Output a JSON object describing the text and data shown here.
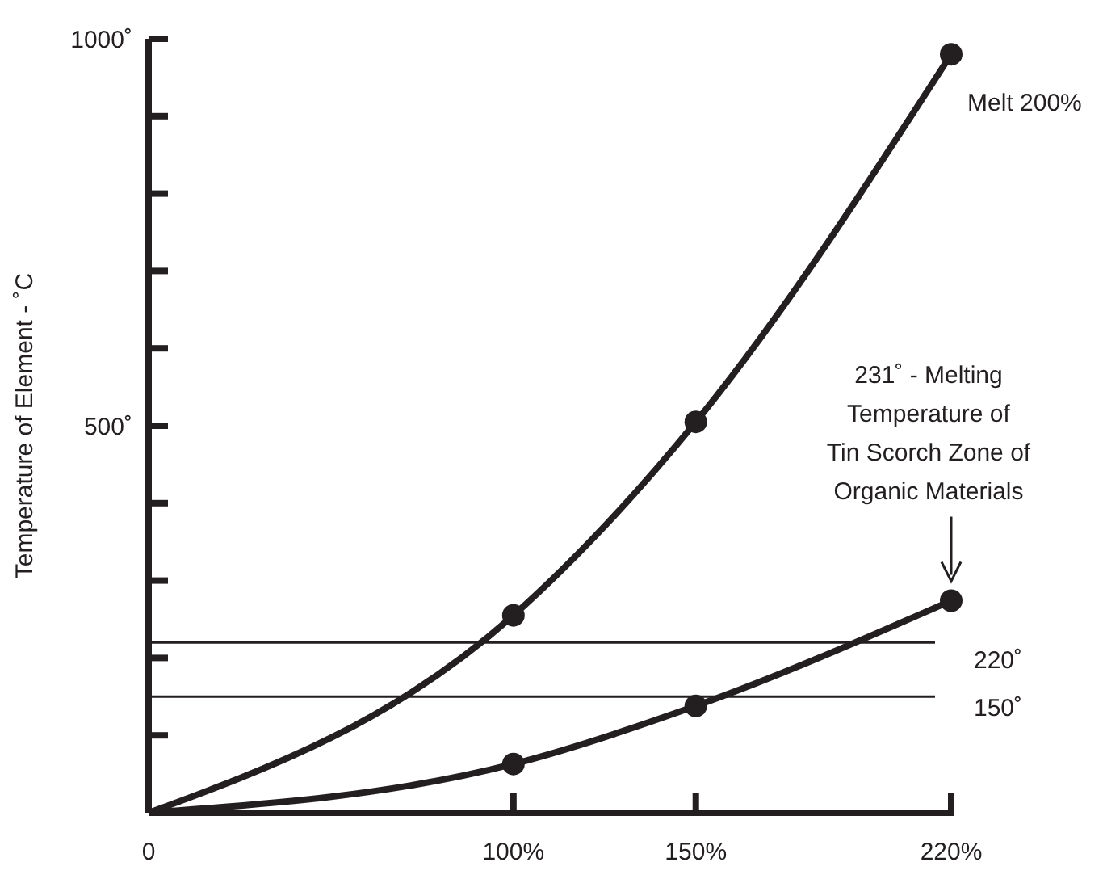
{
  "chart_data": {
    "type": "line",
    "ylabel": "Temperature of Element - ˚C",
    "x": [
      0,
      100,
      150,
      220
    ],
    "series": [
      {
        "name": "Melt 200%",
        "color": "#231f20",
        "values": [
          0,
          255,
          505,
          980
        ]
      },
      {
        "color": "#231f20",
        "values": [
          0,
          63,
          138,
          274
        ]
      }
    ],
    "xlim": [
      0,
      220
    ],
    "xticks": [
      {
        "value": 0,
        "label": "0"
      },
      {
        "value": 100,
        "label": "100%"
      },
      {
        "value": 150,
        "label": "150%"
      },
      {
        "value": 220,
        "label": "220%"
      }
    ],
    "ylim": [
      0,
      1000
    ],
    "yticks": [
      {
        "value": 100,
        "label": null
      },
      {
        "value": 200,
        "label": null
      },
      {
        "value": 300,
        "label": null
      },
      {
        "value": 400,
        "label": null
      },
      {
        "value": 500,
        "label": "500˚"
      },
      {
        "value": 600,
        "label": null
      },
      {
        "value": 700,
        "label": null
      },
      {
        "value": 800,
        "label": null
      },
      {
        "value": 900,
        "label": null
      },
      {
        "value": 1000,
        "label": "1000˚"
      }
    ],
    "ref_lines": [
      {
        "axis": "y",
        "value": 220,
        "label": "220˚"
      },
      {
        "axis": "y",
        "value": 150,
        "label": "150˚"
      }
    ],
    "annotations": [
      "231˚ - Melting Temperature of Tin Scorch Zone of Organic Materials"
    ],
    "marker": "circle",
    "line_style": "solid",
    "grid": false
  }
}
